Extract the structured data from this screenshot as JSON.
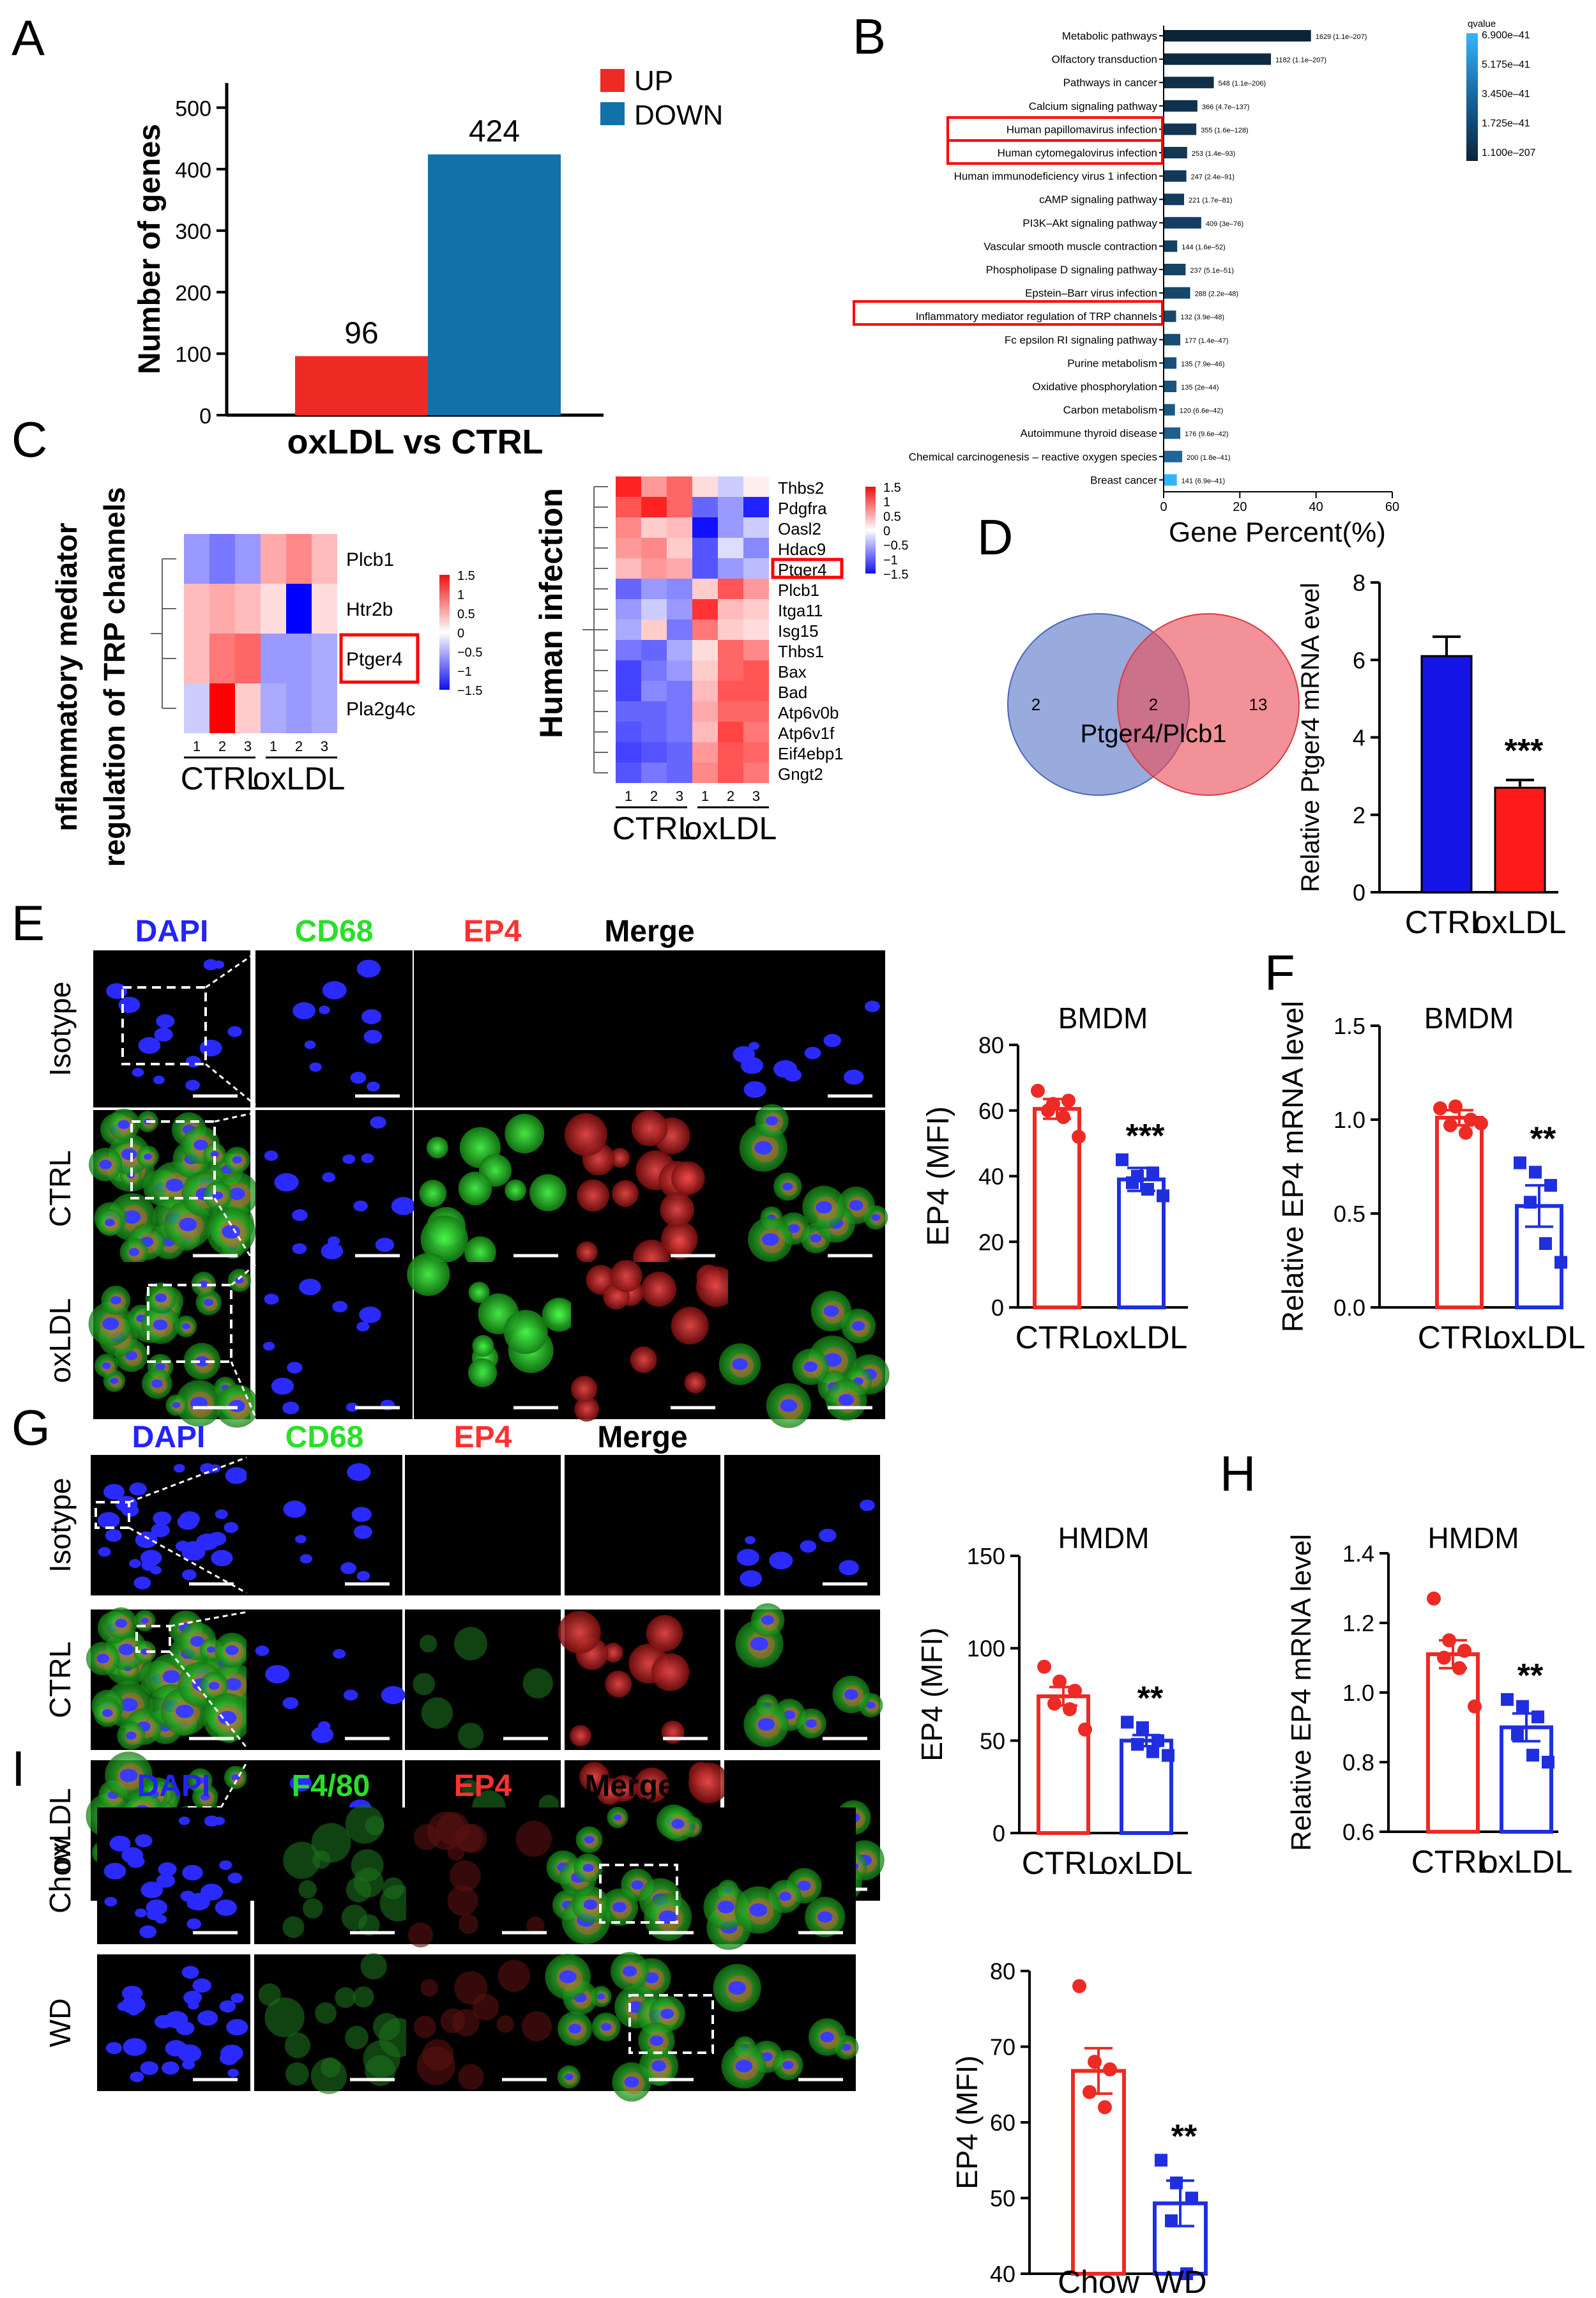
{
  "panel_letters": [
    "A",
    "B",
    "C",
    "D",
    "E",
    "F",
    "G",
    "H",
    "I"
  ],
  "colors": {
    "up": "#ee2a25",
    "down": "#1271a8",
    "ctrl": "#ee2a25",
    "oxldl": "#1f2fe0",
    "ctrl_bar_D": "#1414e6",
    "oxldl_bar_D": "#ff1a1a",
    "dapi": "#2323ff",
    "cd68": "#28e028",
    "ep4": "#ff3030",
    "frame": "#ff0000"
  },
  "chart_data": [
    {
      "panel": "A",
      "type": "bar",
      "categories": [
        "UP",
        "DOWN"
      ],
      "values": [
        96,
        424
      ],
      "xlabel": "oxLDL vs CTRL",
      "ylabel": "Number of genes",
      "ylim": [
        0,
        540
      ],
      "yticks": [
        "0",
        "100",
        "200",
        "300",
        "400",
        "500"
      ],
      "legend": [
        "UP",
        "DOWN"
      ],
      "legend_position": "top-right",
      "data_labels": [
        "96",
        "424"
      ]
    },
    {
      "panel": "B",
      "type": "bar",
      "orientation": "horizontal",
      "categories": [
        "Metabolic pathways",
        "Olfactory transduction",
        "Pathways in cancer",
        "Calcium signaling pathway",
        "Human papillomavirus infection",
        "Human cytomegalovirus infection",
        "Human immunodeficiency virus 1 infection",
        "cAMP signaling pathway",
        "PI3K–Akt signaling pathway",
        "Vascular smooth muscle contraction",
        "Phospholipase D signaling pathway",
        "Epstein–Barr virus infection",
        "Inflammatory mediator regulation of TRP channels",
        "Fc epsilon RI signaling pathway",
        "Purine metabolism",
        "Oxidative phosphorylation",
        "Carbon metabolism",
        "Autoimmune thyroid disease",
        "Chemical carcinogenesis – reactive oxygen species",
        "Breast cancer"
      ],
      "values": [
        38.5,
        28.0,
        13.0,
        8.7,
        8.4,
        6.0,
        5.8,
        5.2,
        9.7,
        3.4,
        5.6,
        6.8,
        3.1,
        4.2,
        3.2,
        3.2,
        2.8,
        4.2,
        4.7,
        3.3
      ],
      "data_labels": [
        "1629 (1.1e–207)",
        "1182 (1.1e–207)",
        "548 (1.1e–206)",
        "366 (4.7e–137)",
        "355 (1.6e–128)",
        "253 (1.4e–93)",
        "247 (2.4e–91)",
        "221 (1.7e–81)",
        "409 (3e–76)",
        "144 (1.6e–52)",
        "237 (5.1e–51)",
        "288 (2.2e–48)",
        "132 (3.9e–48)",
        "177 (1.4e–47)",
        "135 (7.9e–46)",
        "135 (2e–44)",
        "120 (6.6e–42)",
        "176 (9.6e–42)",
        "200 (1.8e–41)",
        "141 (6.9e–41)"
      ],
      "highlighted": [
        "Human papillomavirus infection",
        "Human cytomegalovirus infection",
        "Inflammatory mediator regulation of TRP channels"
      ],
      "xlabel": "Gene Percent(%)",
      "xlim": [
        0,
        60
      ],
      "xticks": [
        "0",
        "20",
        "40",
        "60"
      ],
      "legend_title": "qvalue",
      "legend_labels": [
        "6.900e–41",
        "5.175e–41",
        "3.450e–41",
        "1.725e–41",
        "1.100e–207"
      ]
    },
    {
      "panel": "C1",
      "type": "heatmap",
      "title": "nflammatory mediator regulation of TRP channels",
      "rows": [
        "Plcb1",
        "Htr2b",
        "Ptger4",
        "Pla2g4c"
      ],
      "highlighted_row": "Ptger4",
      "columns": [
        "1",
        "2",
        "3",
        "1",
        "2",
        "3"
      ],
      "groups": [
        "CTRL",
        "oxLDL"
      ],
      "values": [
        [
          -0.6,
          -0.8,
          -0.6,
          0.5,
          0.7,
          0.4
        ],
        [
          0.4,
          0.5,
          0.4,
          0.2,
          -1.5,
          0.2
        ],
        [
          0.4,
          0.8,
          0.9,
          -0.6,
          -0.6,
          -0.5
        ],
        [
          -0.3,
          1.5,
          0.3,
          -0.5,
          -0.6,
          -0.5
        ]
      ],
      "scale_labels": [
        "1.5",
        "1",
        "0.5",
        "0",
        "−0.5",
        "−1",
        "−1.5"
      ]
    },
    {
      "panel": "C2",
      "type": "heatmap",
      "title": "Human infection",
      "rows": [
        "Thbs2",
        "Pdgfra",
        "Oasl2",
        "Hdac9",
        "Ptger4",
        "Plcb1",
        "Itga11",
        "Isg15",
        "Thbs1",
        "Bax",
        "Bad",
        "Atp6v0b",
        "Atp6v1f",
        "Eif4ebp1",
        "Gngt2"
      ],
      "highlighted_row": "Ptger4",
      "columns": [
        "1",
        "2",
        "3",
        "1",
        "2",
        "3"
      ],
      "groups": [
        "CTRL",
        "oxLDL"
      ],
      "values": [
        [
          1.3,
          0.6,
          0.9,
          0.2,
          -0.3,
          0.1
        ],
        [
          1.0,
          1.3,
          0.9,
          -0.9,
          -0.6,
          -1.3
        ],
        [
          0.7,
          0.3,
          0.4,
          -1.4,
          -0.6,
          -0.3
        ],
        [
          0.6,
          0.7,
          0.3,
          -1.0,
          -0.2,
          -0.7
        ],
        [
          0.4,
          0.6,
          0.5,
          -1.0,
          -0.6,
          -0.4
        ],
        [
          -0.9,
          -0.6,
          -0.7,
          0.3,
          1.0,
          0.6
        ],
        [
          -0.6,
          -0.3,
          -0.6,
          1.2,
          0.4,
          0.3
        ],
        [
          -0.5,
          0.3,
          -0.8,
          0.8,
          0.3,
          0.2
        ],
        [
          -0.8,
          -0.9,
          -0.5,
          0.2,
          0.9,
          0.7
        ],
        [
          -1.1,
          -0.8,
          -0.6,
          0.3,
          0.9,
          1.0
        ],
        [
          -1.1,
          -0.7,
          -0.8,
          0.4,
          1.0,
          1.0
        ],
        [
          -0.9,
          -0.9,
          -0.8,
          0.5,
          0.9,
          0.9
        ],
        [
          -1.0,
          -0.9,
          -0.8,
          0.4,
          1.1,
          0.8
        ],
        [
          -1.1,
          -1.0,
          -0.9,
          0.6,
          1.0,
          0.9
        ],
        [
          -1.0,
          -0.8,
          -0.9,
          0.7,
          1.0,
          0.8
        ]
      ],
      "scale_labels": [
        "1.5",
        "1",
        "0.5",
        "0",
        "−0.5",
        "−1",
        "−1.5"
      ]
    },
    {
      "panel": "D",
      "type": "bar",
      "categories": [
        "CTRL",
        "oxLDL"
      ],
      "values": [
        6.1,
        2.7
      ],
      "errors": [
        0.5,
        0.2
      ],
      "ylabel": "Relative Ptger4 mRNA evel",
      "ylim": [
        0,
        8
      ],
      "yticks": [
        "0",
        "2",
        "4",
        "6",
        "8"
      ],
      "significance": "***"
    },
    {
      "panel": "E",
      "type": "bar",
      "title": "BMDM",
      "categories": [
        "CTRL",
        "oxLDL"
      ],
      "values": [
        60.5,
        39.0
      ],
      "errors": [
        3.0,
        3.5
      ],
      "points": [
        [
          66,
          62,
          63,
          60,
          58,
          52
        ],
        [
          45,
          40,
          41,
          38,
          36,
          34
        ]
      ],
      "ylabel": "EP4 (MFI)",
      "ylim": [
        0,
        80
      ],
      "yticks": [
        "0",
        "20",
        "40",
        "60",
        "80"
      ],
      "significance": "***"
    },
    {
      "panel": "F",
      "type": "bar",
      "title": "BMDM",
      "categories": [
        "CTRL",
        "oxLDL"
      ],
      "values": [
        1.01,
        0.54
      ],
      "errors": [
        0.04,
        0.11
      ],
      "points": [
        [
          1.06,
          1.07,
          1.0,
          0.97,
          0.93,
          0.98
        ],
        [
          0.77,
          0.72,
          0.65,
          0.56,
          0.34,
          0.24
        ]
      ],
      "ylabel": "Relative EP4 mRNA level",
      "ylim": [
        0,
        1.5
      ],
      "yticks": [
        "0.0",
        "0.5",
        "1.0",
        "1.5"
      ],
      "significance": "**"
    },
    {
      "panel": "G",
      "type": "bar",
      "title": "HMDM",
      "categories": [
        "CTRL",
        "oxLDL"
      ],
      "values": [
        74,
        50
      ],
      "errors": [
        5,
        3
      ],
      "points": [
        [
          90,
          82,
          77,
          70,
          67,
          56
        ],
        [
          60,
          57,
          50,
          48,
          44,
          42
        ]
      ],
      "ylabel": "EP4 (MFI)",
      "ylim": [
        0,
        150
      ],
      "yticks": [
        "0",
        "50",
        "100",
        "150"
      ],
      "significance": "**"
    },
    {
      "panel": "H",
      "type": "bar",
      "title": "HMDM",
      "categories": [
        "CTRL",
        "oxLDL"
      ],
      "values": [
        1.11,
        0.9
      ],
      "errors": [
        0.04,
        0.04
      ],
      "points": [
        [
          1.27,
          1.15,
          1.12,
          1.1,
          1.07,
          0.96
        ],
        [
          0.98,
          0.96,
          0.93,
          0.88,
          0.82,
          0.8
        ]
      ],
      "ylabel": "Relative EP4 mRNA level",
      "ylim": [
        0.6,
        1.4
      ],
      "yticks": [
        "0.6",
        "0.8",
        "1.0",
        "1.2",
        "1.4"
      ],
      "significance": "**"
    },
    {
      "panel": "I",
      "type": "bar",
      "categories": [
        "Chow",
        "WD"
      ],
      "values": [
        66.8,
        49.3
      ],
      "errors": [
        3.0,
        3.0
      ],
      "points": [
        [
          78,
          68,
          67,
          64,
          62
        ],
        [
          55,
          52,
          50,
          47,
          40
        ]
      ],
      "ylabel": "EP4 (MFI)",
      "ylim": [
        40,
        80
      ],
      "yticks": [
        "40",
        "50",
        "60",
        "70",
        "80"
      ],
      "significance": "**"
    }
  ],
  "venn": {
    "left": "2",
    "overlap": "2",
    "right": "13",
    "overlap_label": "Ptger4/Plcb1"
  },
  "micrograph_panels": {
    "E": {
      "channels": [
        "DAPI",
        "CD68",
        "EP4",
        "Merge"
      ],
      "rows": [
        "Isotype",
        "CTRL",
        "oxLDL"
      ]
    },
    "G": {
      "channels": [
        "DAPI",
        "CD68",
        "EP4",
        "Merge"
      ],
      "rows": [
        "Isotype",
        "CTRL",
        "oxLDL"
      ]
    },
    "I": {
      "channels": [
        "DAPI",
        "F4/80",
        "EP4",
        "Merge"
      ],
      "rows": [
        "Chow",
        "WD"
      ]
    }
  }
}
